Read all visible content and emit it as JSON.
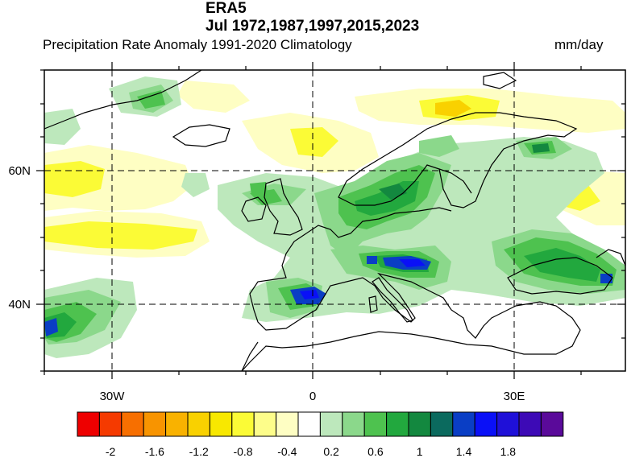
{
  "header": {
    "title": "ERA5",
    "subtitle_dates": "Jul 1972,1987,1997,2015,2023",
    "left_label": "Precipitation Rate Anomaly  1991-2020 Climatology",
    "units": "mm/day"
  },
  "map": {
    "lat_labels": [
      "60N",
      "40N"
    ],
    "lon_labels": [
      "30W",
      "0",
      "30E"
    ],
    "region": "Europe and North Atlantic",
    "variable": "Precipitation Rate Anomaly"
  },
  "colorbar": {
    "colors": [
      "#ee0000",
      "#f53a00",
      "#f76f00",
      "#f89400",
      "#f9b200",
      "#f9d100",
      "#f8e800",
      "#fbfb36",
      "#fdfd8a",
      "#fefec3",
      "#ffffff",
      "#bde8bc",
      "#8bd88b",
      "#4ec24f",
      "#22a83e",
      "#13883f",
      "#0b6a5e",
      "#0a3ec5",
      "#0a10f7",
      "#1f10d8",
      "#3d0ab6",
      "#5a0a9a"
    ],
    "labels": [
      "-2",
      "-1.6",
      "-1.2",
      "-0.8",
      "-0.4",
      "0.2",
      "0.6",
      "1",
      "1.4",
      "1.8"
    ]
  }
}
